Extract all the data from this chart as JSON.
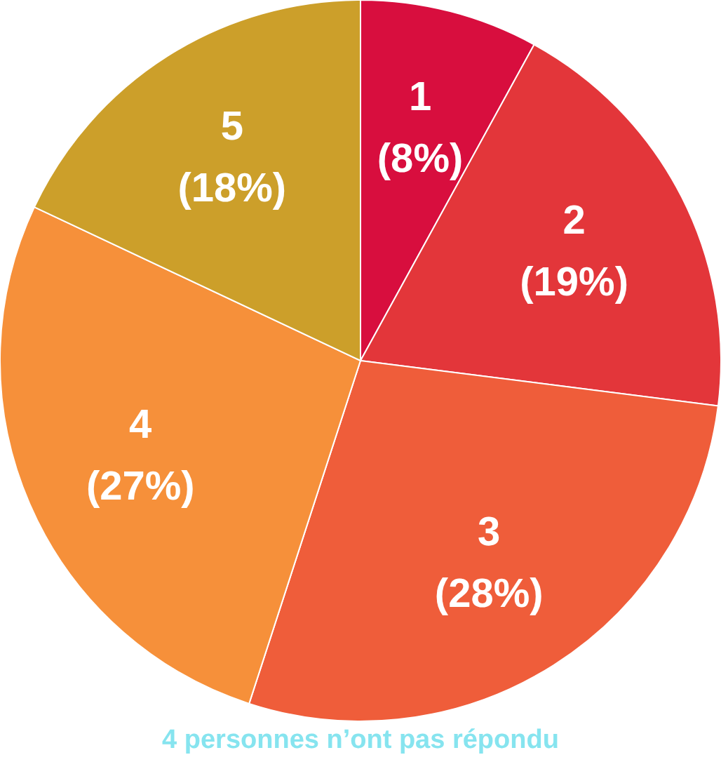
{
  "chart_data": {
    "type": "pie",
    "categories": [
      "1",
      "2",
      "3",
      "4",
      "5"
    ],
    "values": [
      8,
      19,
      28,
      27,
      18
    ],
    "value_labels": [
      "(8%)",
      "(19%)",
      "(28%)",
      "(27%)",
      "(18%)"
    ],
    "colors": [
      "#d80e3e",
      "#e3363a",
      "#ef5d3a",
      "#f6903a",
      "#cc9f2a"
    ],
    "annotations": [
      "4 personnes n’ont pas répondu"
    ]
  }
}
